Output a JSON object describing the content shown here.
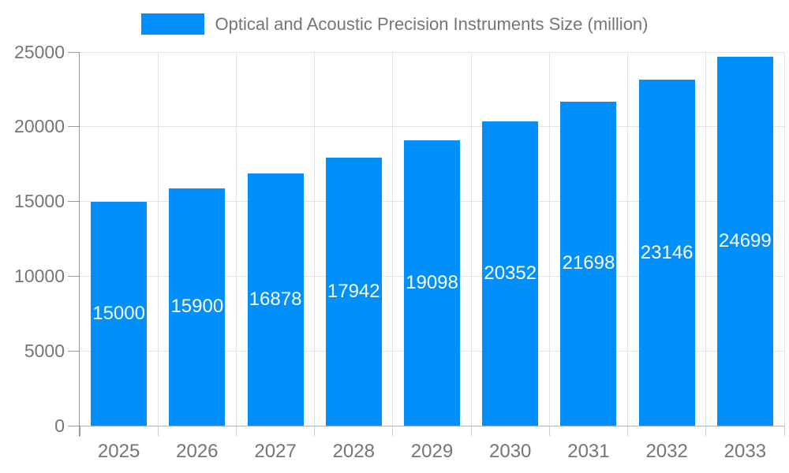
{
  "legend": {
    "label": "Optical and Acoustic Precision Instruments Size (million)"
  },
  "colors": {
    "bar": "#008FFB",
    "axis_text": "#757575",
    "grid": "#e3e3e3",
    "baseline": "#b0b0b0",
    "axis_line": "#999999",
    "tick": "#cccccc",
    "value_label": "#ffffff",
    "background": "#ffffff"
  },
  "chart_data": {
    "type": "bar",
    "title": "Optical and Acoustic Precision Instruments Size (million)",
    "categories": [
      "2025",
      "2026",
      "2027",
      "2028",
      "2029",
      "2030",
      "2031",
      "2032",
      "2033"
    ],
    "values": [
      15000,
      15900,
      16878,
      17942,
      19098,
      20352,
      21698,
      23146,
      24699
    ],
    "xlabel": "",
    "ylabel": "",
    "ylim": [
      0,
      25000
    ],
    "yticks": [
      0,
      5000,
      10000,
      15000,
      20000,
      25000
    ],
    "grid": true,
    "legend_position": "top",
    "value_labels": "inside-center"
  }
}
